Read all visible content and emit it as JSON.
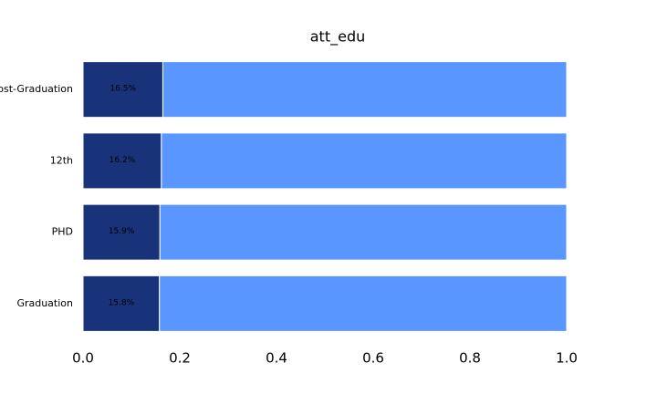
{
  "chart_data": {
    "type": "stacked_barh",
    "title": "att_edu",
    "categories": [
      "Post-Graduation",
      "12th",
      "PHD",
      "Graduation"
    ],
    "series": [
      {
        "color": "#18337a",
        "values": [
          0.165,
          0.162,
          0.159,
          0.158
        ],
        "value_labels": [
          "16.5%",
          "16.2%",
          "15.9%",
          "15.8%"
        ]
      },
      {
        "color": "#5a96ff",
        "values": [
          0.835,
          0.838,
          0.841,
          0.842
        ]
      }
    ],
    "xlim": [
      0,
      1
    ],
    "xticks": [
      {
        "value": 0,
        "label": "0.0"
      },
      0.2,
      0.4,
      0.6,
      0.8,
      {
        "value": 1,
        "label": "1.0"
      }
    ],
    "grid": false
  }
}
